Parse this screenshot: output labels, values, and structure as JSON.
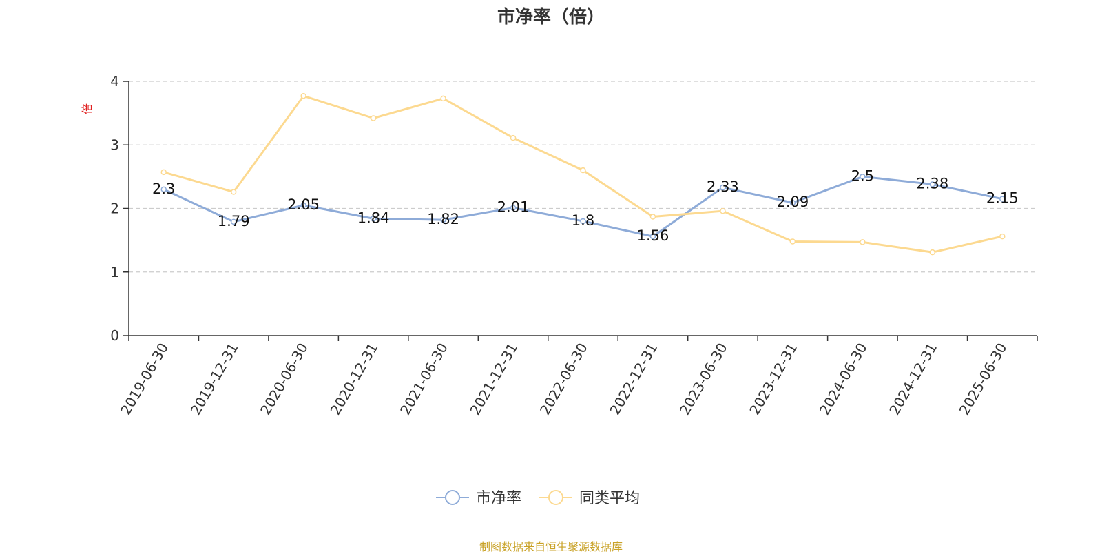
{
  "chart_data": {
    "type": "line",
    "title": "市净率（倍）",
    "ylabel": "倍",
    "xlabel": "",
    "categories": [
      "2019-06-30",
      "2019-12-31",
      "2020-06-30",
      "2020-12-31",
      "2021-06-30",
      "2021-12-31",
      "2022-06-30",
      "2022-12-31",
      "2023-06-30",
      "2023-12-31",
      "2024-06-30",
      "2024-12-31",
      "2025-06-30"
    ],
    "ylim": [
      0,
      4
    ],
    "yticks": [
      0,
      1,
      2,
      3,
      4
    ],
    "grid": true,
    "legend_position": "bottom",
    "series": [
      {
        "name": "市净率",
        "color": "#8eabd8",
        "values": [
          2.3,
          1.79,
          2.05,
          1.84,
          1.82,
          2.01,
          1.8,
          1.56,
          2.33,
          2.09,
          2.5,
          2.38,
          2.15
        ],
        "data_labels": [
          "2.3",
          "1.79",
          "2.05",
          "1.84",
          "1.82",
          "2.01",
          "1.8",
          "1.56",
          "2.33",
          "2.09",
          "2.5",
          "2.38",
          "2.15"
        ]
      },
      {
        "name": "同类平均",
        "color": "#fcd990",
        "values": [
          2.57,
          2.26,
          3.77,
          3.42,
          3.73,
          3.11,
          2.6,
          1.87,
          1.96,
          1.48,
          1.47,
          1.31,
          1.56
        ]
      }
    ]
  },
  "footer": {
    "source": "制图数据来自恒生聚源数据库"
  },
  "colors": {
    "axis": "#333333",
    "grid": "#cccccc",
    "ylabel": "#e02020",
    "title": "#333333",
    "source": "#c9a227"
  }
}
